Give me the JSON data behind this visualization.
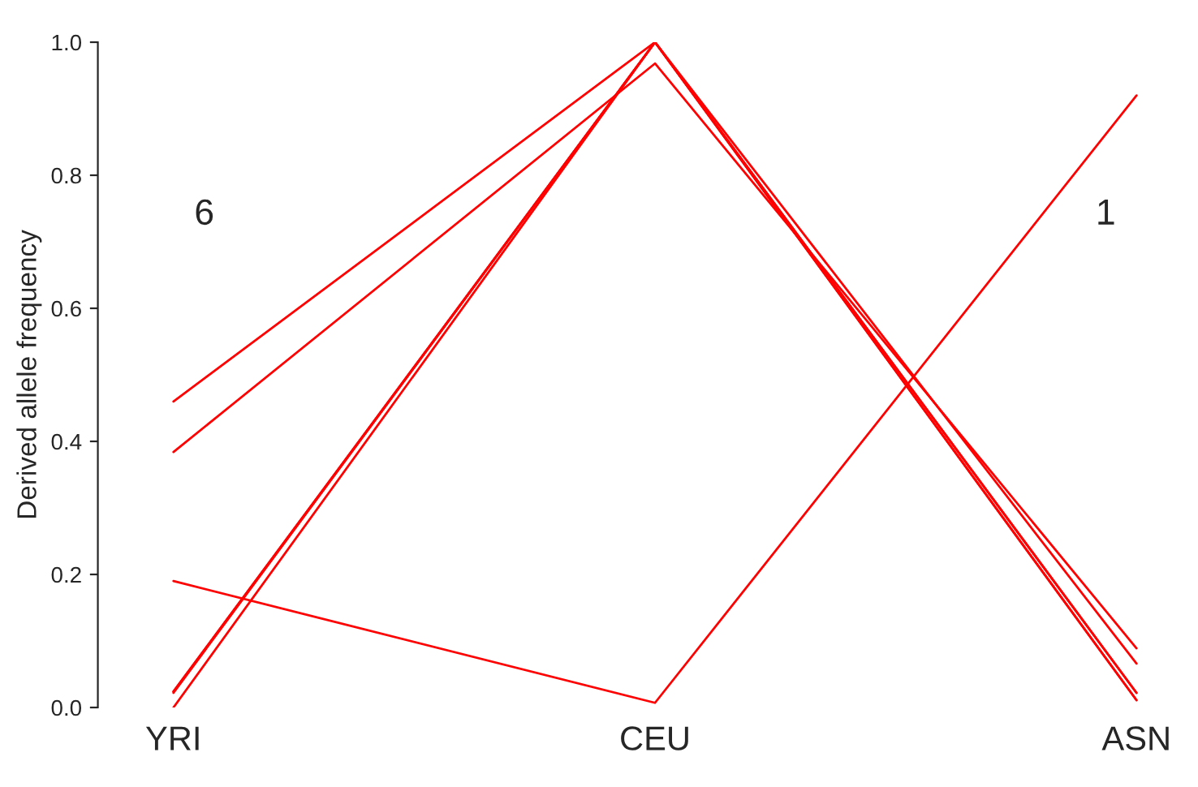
{
  "chart_data": {
    "type": "line",
    "ylabel": "Derived allele frequency",
    "categories": [
      "YRI",
      "CEU",
      "ASN"
    ],
    "series": [
      {
        "color": "#ff0000",
        "values": [
          0.46,
          1.0,
          0.066
        ]
      },
      {
        "color": "#ff0000",
        "values": [
          0.384,
          0.968,
          0.089
        ]
      },
      {
        "color": "#ff0000",
        "values": [
          0.024,
          1.0,
          0.022
        ]
      },
      {
        "color": "#ff0000",
        "values": [
          0.022,
          1.0,
          0.011
        ]
      },
      {
        "color": "#ff0000",
        "values": [
          0.0,
          1.0,
          0.011
        ]
      },
      {
        "color": "#ff0000",
        "values": [
          0.024,
          1.0,
          0.022
        ]
      },
      {
        "color": "#ff0000",
        "values": [
          0.19,
          0.007,
          0.92
        ]
      }
    ],
    "ylim": [
      0,
      1
    ],
    "yticks": [
      {
        "value": 0,
        "label": "0.0"
      },
      0.2,
      0.4,
      0.6,
      0.8,
      {
        "value": 1,
        "label": "1.0"
      }
    ],
    "annotations": [
      "6",
      "1"
    ],
    "marker": "none",
    "line_style": "solid"
  }
}
